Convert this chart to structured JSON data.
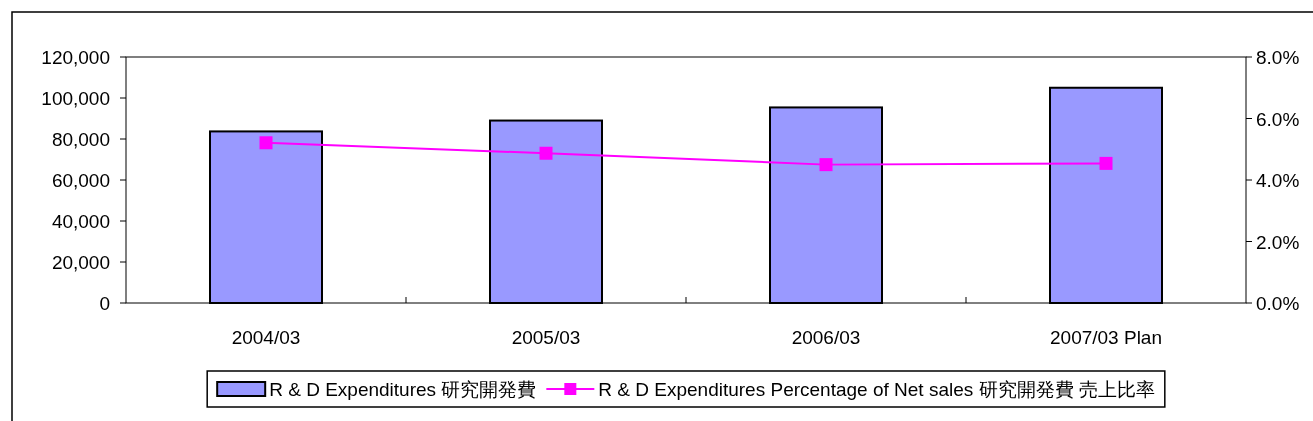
{
  "chart_data": {
    "type": "bar",
    "categories": [
      "2004/03",
      "2005/03",
      "2006/03",
      "2007/03 Plan"
    ],
    "series": [
      {
        "name": "R & D Expenditures 研究開発費",
        "color": "#9999ff",
        "values": [
          83700,
          89000,
          95400,
          105000
        ]
      },
      {
        "name": "R & D Expenditures Percentage of Net sales 研究開発費 売上比率",
        "type": "line",
        "axis": "y2",
        "marker": "square",
        "color": "#ff00ff",
        "values": [
          5.21,
          4.87,
          4.5,
          4.54
        ]
      }
    ],
    "ylim": [
      0,
      120000
    ],
    "yticks": [
      0,
      {
        "value": 20000,
        "label": "20,000"
      },
      {
        "value": 40000,
        "label": "40,000"
      },
      {
        "value": 60000,
        "label": "60,000"
      },
      {
        "value": 80000,
        "label": "80,000"
      },
      {
        "value": 100000,
        "label": "100,000"
      },
      {
        "value": 120000,
        "label": "120,000"
      }
    ],
    "y2lim": [
      0,
      8
    ],
    "y2ticks": [
      {
        "value": 0,
        "label": "0.0%"
      },
      {
        "value": 2,
        "label": "2.0%"
      },
      {
        "value": 4,
        "label": "4.0%"
      },
      {
        "value": 6,
        "label": "6.0%"
      },
      {
        "value": 8,
        "label": "8.0%"
      }
    ],
    "legend": "bottom"
  }
}
